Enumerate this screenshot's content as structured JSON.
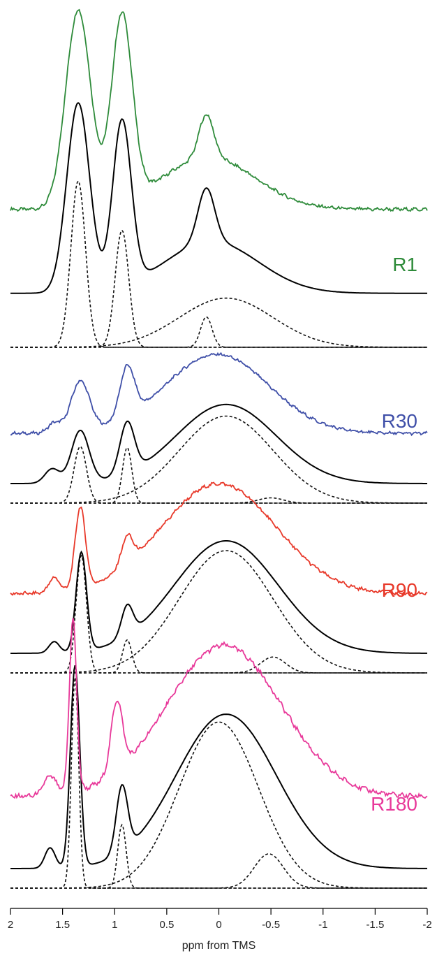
{
  "chart_data": {
    "type": "line",
    "title": "",
    "xlabel": "ppm from TMS",
    "ylabel": "",
    "xlim": [
      2,
      -2
    ],
    "x_reversed": true,
    "x_ticks": [
      2,
      1.5,
      1,
      0.5,
      0,
      -0.5,
      -1,
      -1.5,
      -2
    ],
    "x_tick_labels": [
      "2",
      "1.5",
      "1",
      "0.5",
      "0",
      "-0.5",
      "-1",
      "-1.5",
      "-2"
    ],
    "grid": false,
    "panels": [
      {
        "label": "R1",
        "color": "#2e8b3a",
        "experimental": {
          "offset": 0.42,
          "broad": [
            0.24,
            0.1,
            0.45
          ],
          "peaks": [
            [
              0.92,
              1.35,
              0.12
            ],
            [
              0.87,
              0.93,
              0.1
            ],
            [
              0.2,
              0.12,
              0.07
            ]
          ],
          "noise": 0.006
        },
        "fit": {
          "offset": 0.16,
          "broad": [
            0.24,
            0.07,
            0.45
          ],
          "peaks": [
            [
              0.88,
              1.35,
              0.11
            ],
            [
              0.77,
              0.93,
              0.09
            ],
            [
              0.25,
              0.12,
              0.08
            ]
          ]
        },
        "components": [
          {
            "center": 1.35,
            "height": 0.71,
            "width": 0.07
          },
          {
            "center": 0.93,
            "height": 0.5,
            "width": 0.065
          },
          {
            "center": 0.12,
            "height": 0.13,
            "width": 0.055
          },
          {
            "center": -0.07,
            "height": 0.21,
            "width": 0.45
          }
        ]
      },
      {
        "label": "R30",
        "color": "#3f4fa8",
        "experimental": {
          "offset": 0.23,
          "broad": [
            0.82,
            0.02,
            0.5
          ],
          "peaks": [
            [
              0.52,
              1.33,
              0.09
            ],
            [
              0.52,
              0.88,
              0.07
            ],
            [
              0.1,
              1.58,
              0.06
            ]
          ],
          "noise": 0.012
        },
        "fit": {
          "offset": 0.0,
          "broad": [
            0.82,
            -0.07,
            0.48
          ],
          "peaks": [
            [
              0.54,
              1.33,
              0.085
            ],
            [
              0.53,
              0.88,
              0.07
            ],
            [
              0.15,
              1.6,
              0.07
            ]
          ]
        },
        "components": [
          {
            "center": 1.33,
            "height": 0.54,
            "width": 0.06
          },
          {
            "center": 0.88,
            "height": 0.53,
            "width": 0.045
          },
          {
            "center": -0.07,
            "height": 0.83,
            "width": 0.45
          },
          {
            "center": -0.5,
            "height": 0.05,
            "width": 0.12
          }
        ]
      },
      {
        "label": "R90",
        "color": "#e8392a",
        "experimental": {
          "offset": 0.28,
          "broad": [
            0.98,
            0.0,
            0.55
          ],
          "peaks": [
            [
              0.72,
              1.33,
              0.05
            ],
            [
              0.25,
              0.88,
              0.055
            ],
            [
              0.13,
              1.58,
              0.05
            ]
          ],
          "noise": 0.012
        },
        "fit": {
          "offset": 0.0,
          "broad": [
            1.0,
            -0.07,
            0.5
          ],
          "peaks": [
            [
              0.88,
              1.32,
              0.05
            ],
            [
              0.27,
              0.88,
              0.055
            ],
            [
              0.1,
              1.58,
              0.05
            ]
          ]
        },
        "components": [
          {
            "center": 1.32,
            "height": 0.96,
            "width": 0.05
          },
          {
            "center": 0.88,
            "height": 0.27,
            "width": 0.045
          },
          {
            "center": -0.07,
            "height": 1.0,
            "width": 0.45
          },
          {
            "center": -0.52,
            "height": 0.13,
            "width": 0.12
          }
        ]
      },
      {
        "label": "R180",
        "color": "#e8399a",
        "experimental": {
          "offset": 0.28,
          "broad": [
            0.96,
            -0.05,
            0.55
          ],
          "peaks": [
            [
              1.1,
              1.4,
              0.035
            ],
            [
              0.45,
              0.98,
              0.055
            ],
            [
              0.12,
              1.62,
              0.06
            ]
          ],
          "noise": 0.012
        },
        "fit": {
          "offset": 0.0,
          "broad": [
            0.98,
            -0.07,
            0.48
          ],
          "peaks": [
            [
              1.28,
              1.38,
              0.045
            ],
            [
              0.42,
              0.93,
              0.055
            ],
            [
              0.13,
              1.62,
              0.05
            ]
          ]
        },
        "components": [
          {
            "center": 1.38,
            "height": 1.23,
            "width": 0.035
          },
          {
            "center": 0.93,
            "height": 0.37,
            "width": 0.04
          },
          {
            "center": 0.0,
            "height": 0.97,
            "width": 0.38
          },
          {
            "center": -0.48,
            "height": 0.2,
            "width": 0.14
          }
        ]
      }
    ]
  }
}
